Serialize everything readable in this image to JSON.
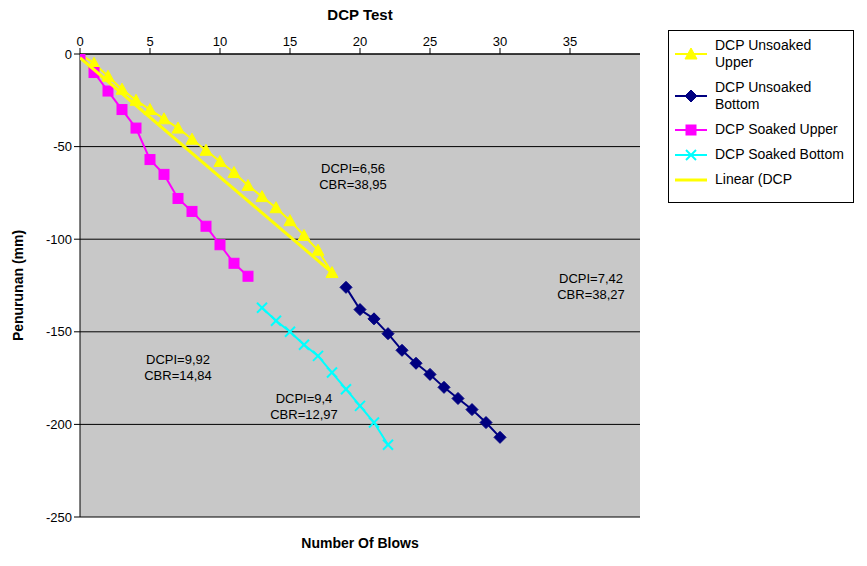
{
  "chart_data": {
    "type": "scatter",
    "title": "DCP Test",
    "x_label": "Number Of Blows",
    "y_label": "Penurunan (mm)",
    "xlim": [
      0,
      40
    ],
    "xticks": [
      0,
      5,
      10,
      15,
      20,
      25,
      30,
      35
    ],
    "ylim": [
      -250,
      0
    ],
    "yticks": [
      -250,
      -200,
      -150,
      -100,
      -50,
      0
    ],
    "grid": true,
    "legend": "right",
    "series": [
      {
        "name": "DCP Unsoaked Upper",
        "color": "#ffff00",
        "marker": "triangle",
        "line_style": "solid",
        "x": [
          0,
          1,
          2,
          3,
          4,
          5,
          6,
          7,
          8,
          9,
          10,
          11,
          12,
          13,
          14,
          15,
          16,
          17,
          18
        ],
        "values": [
          0,
          -5,
          -12,
          -19,
          -25,
          -30,
          -35,
          -40,
          -46,
          -52,
          -58,
          -64,
          -71,
          -77,
          -83,
          -90,
          -98,
          -106,
          -118
        ]
      },
      {
        "name": "DCP Unsoaked Bottom",
        "color": "#000080",
        "marker": "diamond",
        "line_style": "solid",
        "x": [
          19,
          20,
          21,
          22,
          23,
          24,
          25,
          26,
          27,
          28,
          29,
          30
        ],
        "values": [
          -126,
          -138,
          -143,
          -151,
          -160,
          -167,
          -173,
          -180,
          -186,
          -192,
          -199,
          -207
        ]
      },
      {
        "name": "DCP Soaked Upper",
        "color": "#ff00ff",
        "marker": "square",
        "line_style": "solid",
        "x": [
          0,
          1,
          2,
          3,
          4,
          5,
          6,
          7,
          8,
          9,
          10,
          11,
          12
        ],
        "values": [
          0,
          -10,
          -20,
          -30,
          -40,
          -57,
          -65,
          -78,
          -85,
          -93,
          -103,
          -113,
          -120
        ]
      },
      {
        "name": "DCP Soaked Bottom",
        "color": "#00ffff",
        "marker": "x",
        "line_style": "solid",
        "x": [
          13,
          14,
          15,
          16,
          17,
          18,
          19,
          20,
          21,
          22
        ],
        "values": [
          -137,
          -144,
          -150,
          -157,
          -163,
          -172,
          -181,
          -190,
          -199,
          -211
        ]
      },
      {
        "name": "Linear (DCP",
        "color": "#ffff00",
        "marker": "none",
        "line_style": "solid",
        "x": [
          0,
          18
        ],
        "values": [
          -2,
          -118
        ]
      }
    ],
    "annotations": [
      {
        "lines": [
          "DCPI=6,56",
          "CBR=38,95"
        ],
        "x": 19.5,
        "y": -66
      },
      {
        "lines": [
          "DCPI=9,92",
          "CBR=14,84"
        ],
        "x": 7,
        "y": -169
      },
      {
        "lines": [
          "DCPI=7,42",
          "CBR=38,27"
        ],
        "x": 36.5,
        "y": -125
      },
      {
        "lines": [
          "DCPI=9,4",
          "CBR=12,97"
        ],
        "x": 16,
        "y": -190
      }
    ]
  }
}
